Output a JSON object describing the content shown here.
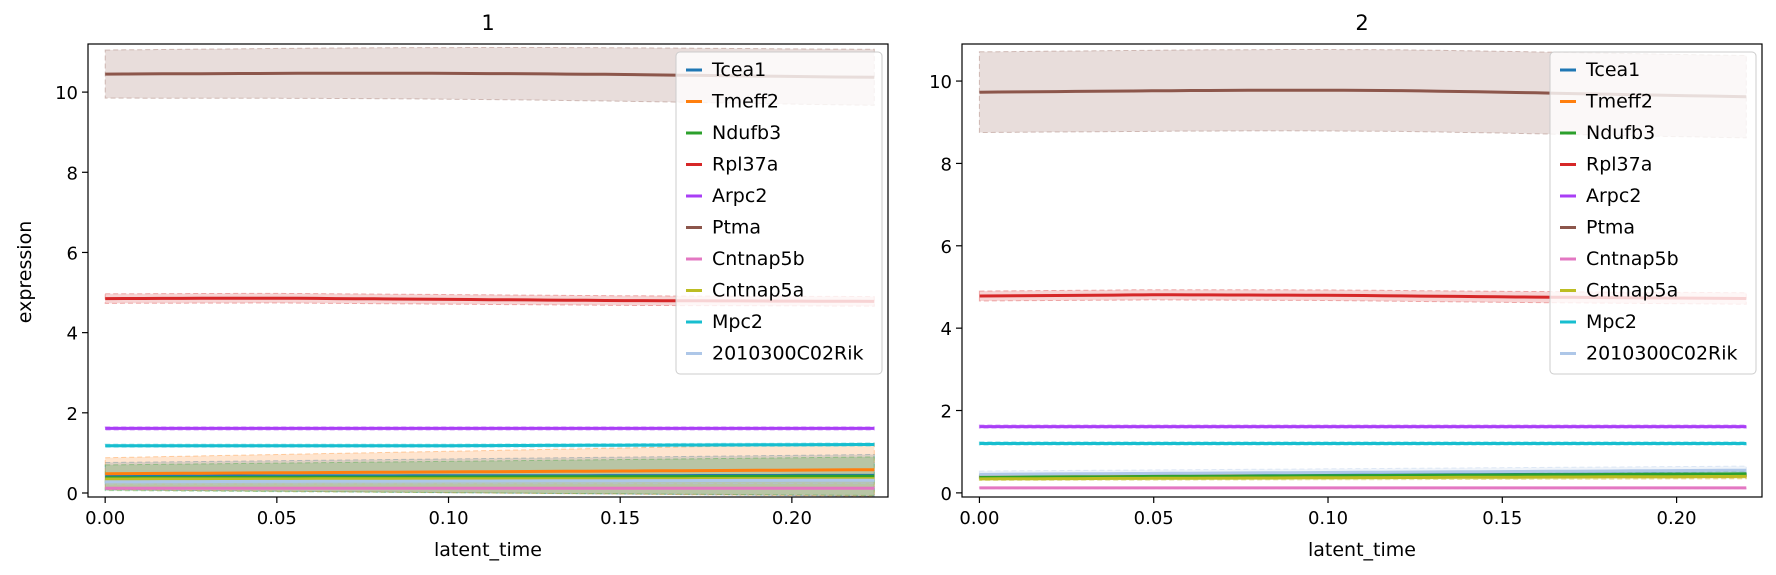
{
  "figure": {
    "ylabel": "expression",
    "xlabel": "latent_time"
  },
  "legend": {
    "entries": [
      "Tcea1",
      "Tmeff2",
      "Ndufb3",
      "Rpl37a",
      "Arpc2",
      "Ptma",
      "Cntnap5b",
      "Cntnap5a",
      "Mpc2",
      "2010300C02Rik"
    ],
    "colors": [
      "#1f77b4",
      "#ff7f0e",
      "#2ca02c",
      "#d62728",
      "#a93ef6",
      "#8c564b",
      "#e377c2",
      "#bcbd22",
      "#17becf",
      "#aec7e8"
    ],
    "placement": "upper right"
  },
  "chart_data": [
    {
      "type": "line",
      "title": "1",
      "xlabel": "latent_time",
      "ylabel": "expression",
      "xlim": [
        -0.005,
        0.228
      ],
      "ylim": [
        -0.1,
        11.2
      ],
      "xticks": [
        0.0,
        0.05,
        0.1,
        0.15,
        0.2
      ],
      "xtick_labels": [
        "0.00",
        "0.05",
        "0.10",
        "0.15",
        "0.20"
      ],
      "yticks": [
        0,
        2,
        4,
        6,
        8,
        10
      ],
      "ytick_labels": [
        "0",
        "2",
        "4",
        "6",
        "8",
        "10"
      ],
      "series": [
        {
          "name": "Tcea1",
          "color": "#1f77b4",
          "x": [
            0,
            0.224
          ],
          "values": [
            0.42,
            0.44
          ],
          "band": [
            0.34,
            0.52
          ]
        },
        {
          "name": "Tmeff2",
          "color": "#ff7f0e",
          "x": [
            0,
            0.224
          ],
          "values": [
            0.48,
            0.58
          ],
          "band": [
            0.4,
            0.66
          ]
        },
        {
          "name": "Ndufb3",
          "color": "#2ca02c",
          "x": [
            0,
            0.224
          ],
          "values": [
            0.38,
            0.42
          ],
          "band": [
            0.32,
            0.48
          ]
        },
        {
          "name": "Rpl37a",
          "color": "#d62728",
          "x": [
            0,
            0.05,
            0.1,
            0.15,
            0.224
          ],
          "values": [
            4.85,
            4.86,
            4.83,
            4.8,
            4.78
          ],
          "band": [
            0.12,
            0.12
          ]
        },
        {
          "name": "Arpc2",
          "color": "#a93ef6",
          "x": [
            0,
            0.224
          ],
          "values": [
            1.61,
            1.61
          ],
          "band": [
            0.04,
            0.04
          ]
        },
        {
          "name": "Ptma",
          "color": "#8c564b",
          "x": [
            0,
            0.03,
            0.06,
            0.09,
            0.12,
            0.15,
            0.18,
            0.21,
            0.224
          ],
          "values": [
            10.45,
            10.46,
            10.47,
            10.47,
            10.46,
            10.44,
            10.41,
            10.38,
            10.37
          ],
          "band": [
            0.6,
            0.7
          ]
        },
        {
          "name": "Cntnap5b",
          "color": "#e377c2",
          "x": [
            0,
            0.224
          ],
          "values": [
            0.12,
            0.12
          ],
          "band": [
            0.02,
            0.02
          ]
        },
        {
          "name": "Cntnap5a",
          "color": "#bcbd22",
          "x": [
            0,
            0.224
          ],
          "values": [
            0.35,
            0.36
          ],
          "band": [
            0.03,
            0.04
          ]
        },
        {
          "name": "Mpc2",
          "color": "#17becf",
          "x": [
            0,
            0.1,
            0.224
          ],
          "values": [
            1.18,
            1.18,
            1.21
          ],
          "band": [
            0.04,
            0.04
          ]
        },
        {
          "name": "2010300C02Rik",
          "color": "#aec7e8",
          "x": [
            0,
            0.224
          ],
          "values": [
            0.28,
            0.32
          ],
          "band": [
            0.06,
            0.08
          ]
        }
      ]
    },
    {
      "type": "line",
      "title": "2",
      "xlabel": "latent_time",
      "ylabel": "",
      "xlim": [
        -0.005,
        0.2245
      ],
      "ylim": [
        -0.1,
        10.9
      ],
      "xticks": [
        0.0,
        0.05,
        0.1,
        0.15,
        0.2
      ],
      "xtick_labels": [
        "0.00",
        "0.05",
        "0.10",
        "0.15",
        "0.20"
      ],
      "yticks": [
        0,
        2,
        4,
        6,
        8,
        10
      ],
      "ytick_labels": [
        "0",
        "2",
        "4",
        "6",
        "8",
        "10"
      ],
      "series": [
        {
          "name": "Tcea1",
          "color": "#1f77b4",
          "x": [
            0,
            0.22
          ],
          "values": [
            0.42,
            0.46
          ],
          "band": [
            0.04,
            0.06
          ]
        },
        {
          "name": "Tmeff2",
          "color": "#ff7f0e",
          "x": [
            0,
            0.22
          ],
          "values": [
            0.4,
            0.42
          ],
          "band": [
            0.04,
            0.06
          ]
        },
        {
          "name": "Ndufb3",
          "color": "#2ca02c",
          "x": [
            0,
            0.22
          ],
          "values": [
            0.38,
            0.46
          ],
          "band": [
            0.04,
            0.06
          ]
        },
        {
          "name": "Rpl37a",
          "color": "#d62728",
          "x": [
            0,
            0.05,
            0.1,
            0.15,
            0.22
          ],
          "values": [
            4.78,
            4.81,
            4.8,
            4.76,
            4.72
          ],
          "band": [
            0.12,
            0.14
          ]
        },
        {
          "name": "Arpc2",
          "color": "#a93ef6",
          "x": [
            0,
            0.22
          ],
          "values": [
            1.61,
            1.61
          ],
          "band": [
            0.04,
            0.04
          ]
        },
        {
          "name": "Ptma",
          "color": "#8c564b",
          "x": [
            0,
            0.03,
            0.06,
            0.09,
            0.12,
            0.15,
            0.18,
            0.22
          ],
          "values": [
            9.73,
            9.75,
            9.77,
            9.78,
            9.77,
            9.73,
            9.68,
            9.62
          ],
          "band": [
            0.98,
            1.0
          ]
        },
        {
          "name": "Cntnap5b",
          "color": "#e377c2",
          "x": [
            0,
            0.22
          ],
          "values": [
            0.12,
            0.12
          ],
          "band": [
            0.02,
            0.02
          ]
        },
        {
          "name": "Cntnap5a",
          "color": "#bcbd22",
          "x": [
            0,
            0.22
          ],
          "values": [
            0.34,
            0.4
          ],
          "band": [
            0.04,
            0.06
          ]
        },
        {
          "name": "Mpc2",
          "color": "#17becf",
          "x": [
            0,
            0.22
          ],
          "values": [
            1.2,
            1.2
          ],
          "band": [
            0.04,
            0.04
          ]
        },
        {
          "name": "2010300C02Rik",
          "color": "#aec7e8",
          "x": [
            0,
            0.22
          ],
          "values": [
            0.45,
            0.55
          ],
          "band": [
            0.08,
            0.1
          ]
        }
      ]
    }
  ]
}
